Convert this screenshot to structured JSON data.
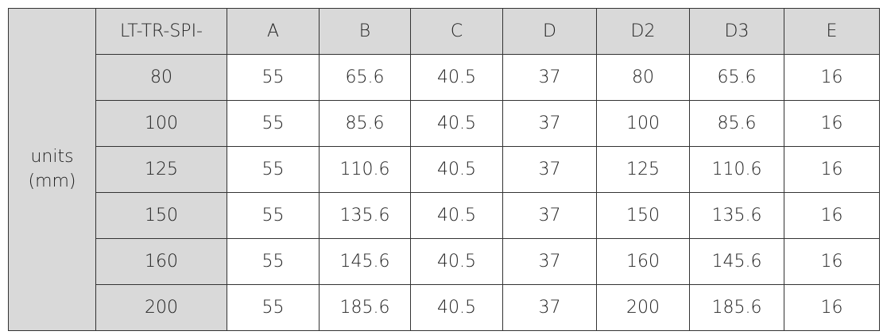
{
  "table": {
    "side_label": "units\n(mm)",
    "header": [
      "LT-TR-SPI-",
      "A",
      "B",
      "C",
      "D",
      "D2",
      "D3",
      "E"
    ],
    "rows": [
      [
        80,
        55,
        65.6,
        40.5,
        37,
        80,
        65.6,
        16
      ],
      [
        100,
        55,
        85.6,
        40.5,
        37,
        100,
        85.6,
        16
      ],
      [
        125,
        55,
        110.6,
        40.5,
        37,
        125,
        110.6,
        16
      ],
      [
        150,
        55,
        135.6,
        40.5,
        37,
        150,
        135.6,
        16
      ],
      [
        160,
        55,
        145.6,
        40.5,
        37,
        160,
        145.6,
        16
      ],
      [
        200,
        55,
        185.6,
        40.5,
        37,
        200,
        185.6,
        16
      ]
    ]
  }
}
